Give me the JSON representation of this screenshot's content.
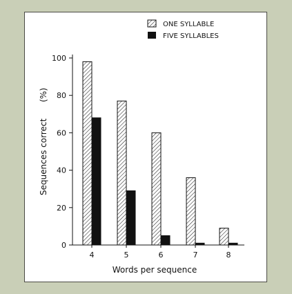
{
  "chart_data": {
    "type": "bar",
    "categories": [
      "4",
      "5",
      "6",
      "7",
      "8"
    ],
    "series": [
      {
        "name": "ONE SYLLABLE",
        "values": [
          98,
          77,
          60,
          36,
          9
        ],
        "pattern": "hatched"
      },
      {
        "name": "FIVE SYLLABLES",
        "values": [
          68,
          29,
          5,
          1,
          1
        ],
        "pattern": "solid"
      }
    ],
    "xlabel": "Words per sequence",
    "ylabel": "Sequences correct",
    "ylabel_unit": "(%)",
    "ylim": [
      0,
      100
    ],
    "yticks": [
      "0",
      "20",
      "40",
      "60",
      "80",
      "100"
    ],
    "legend_position": "top-right",
    "colors": {
      "background": "#c9cfb7",
      "panel": "#ffffff",
      "ink": "#111111"
    }
  }
}
